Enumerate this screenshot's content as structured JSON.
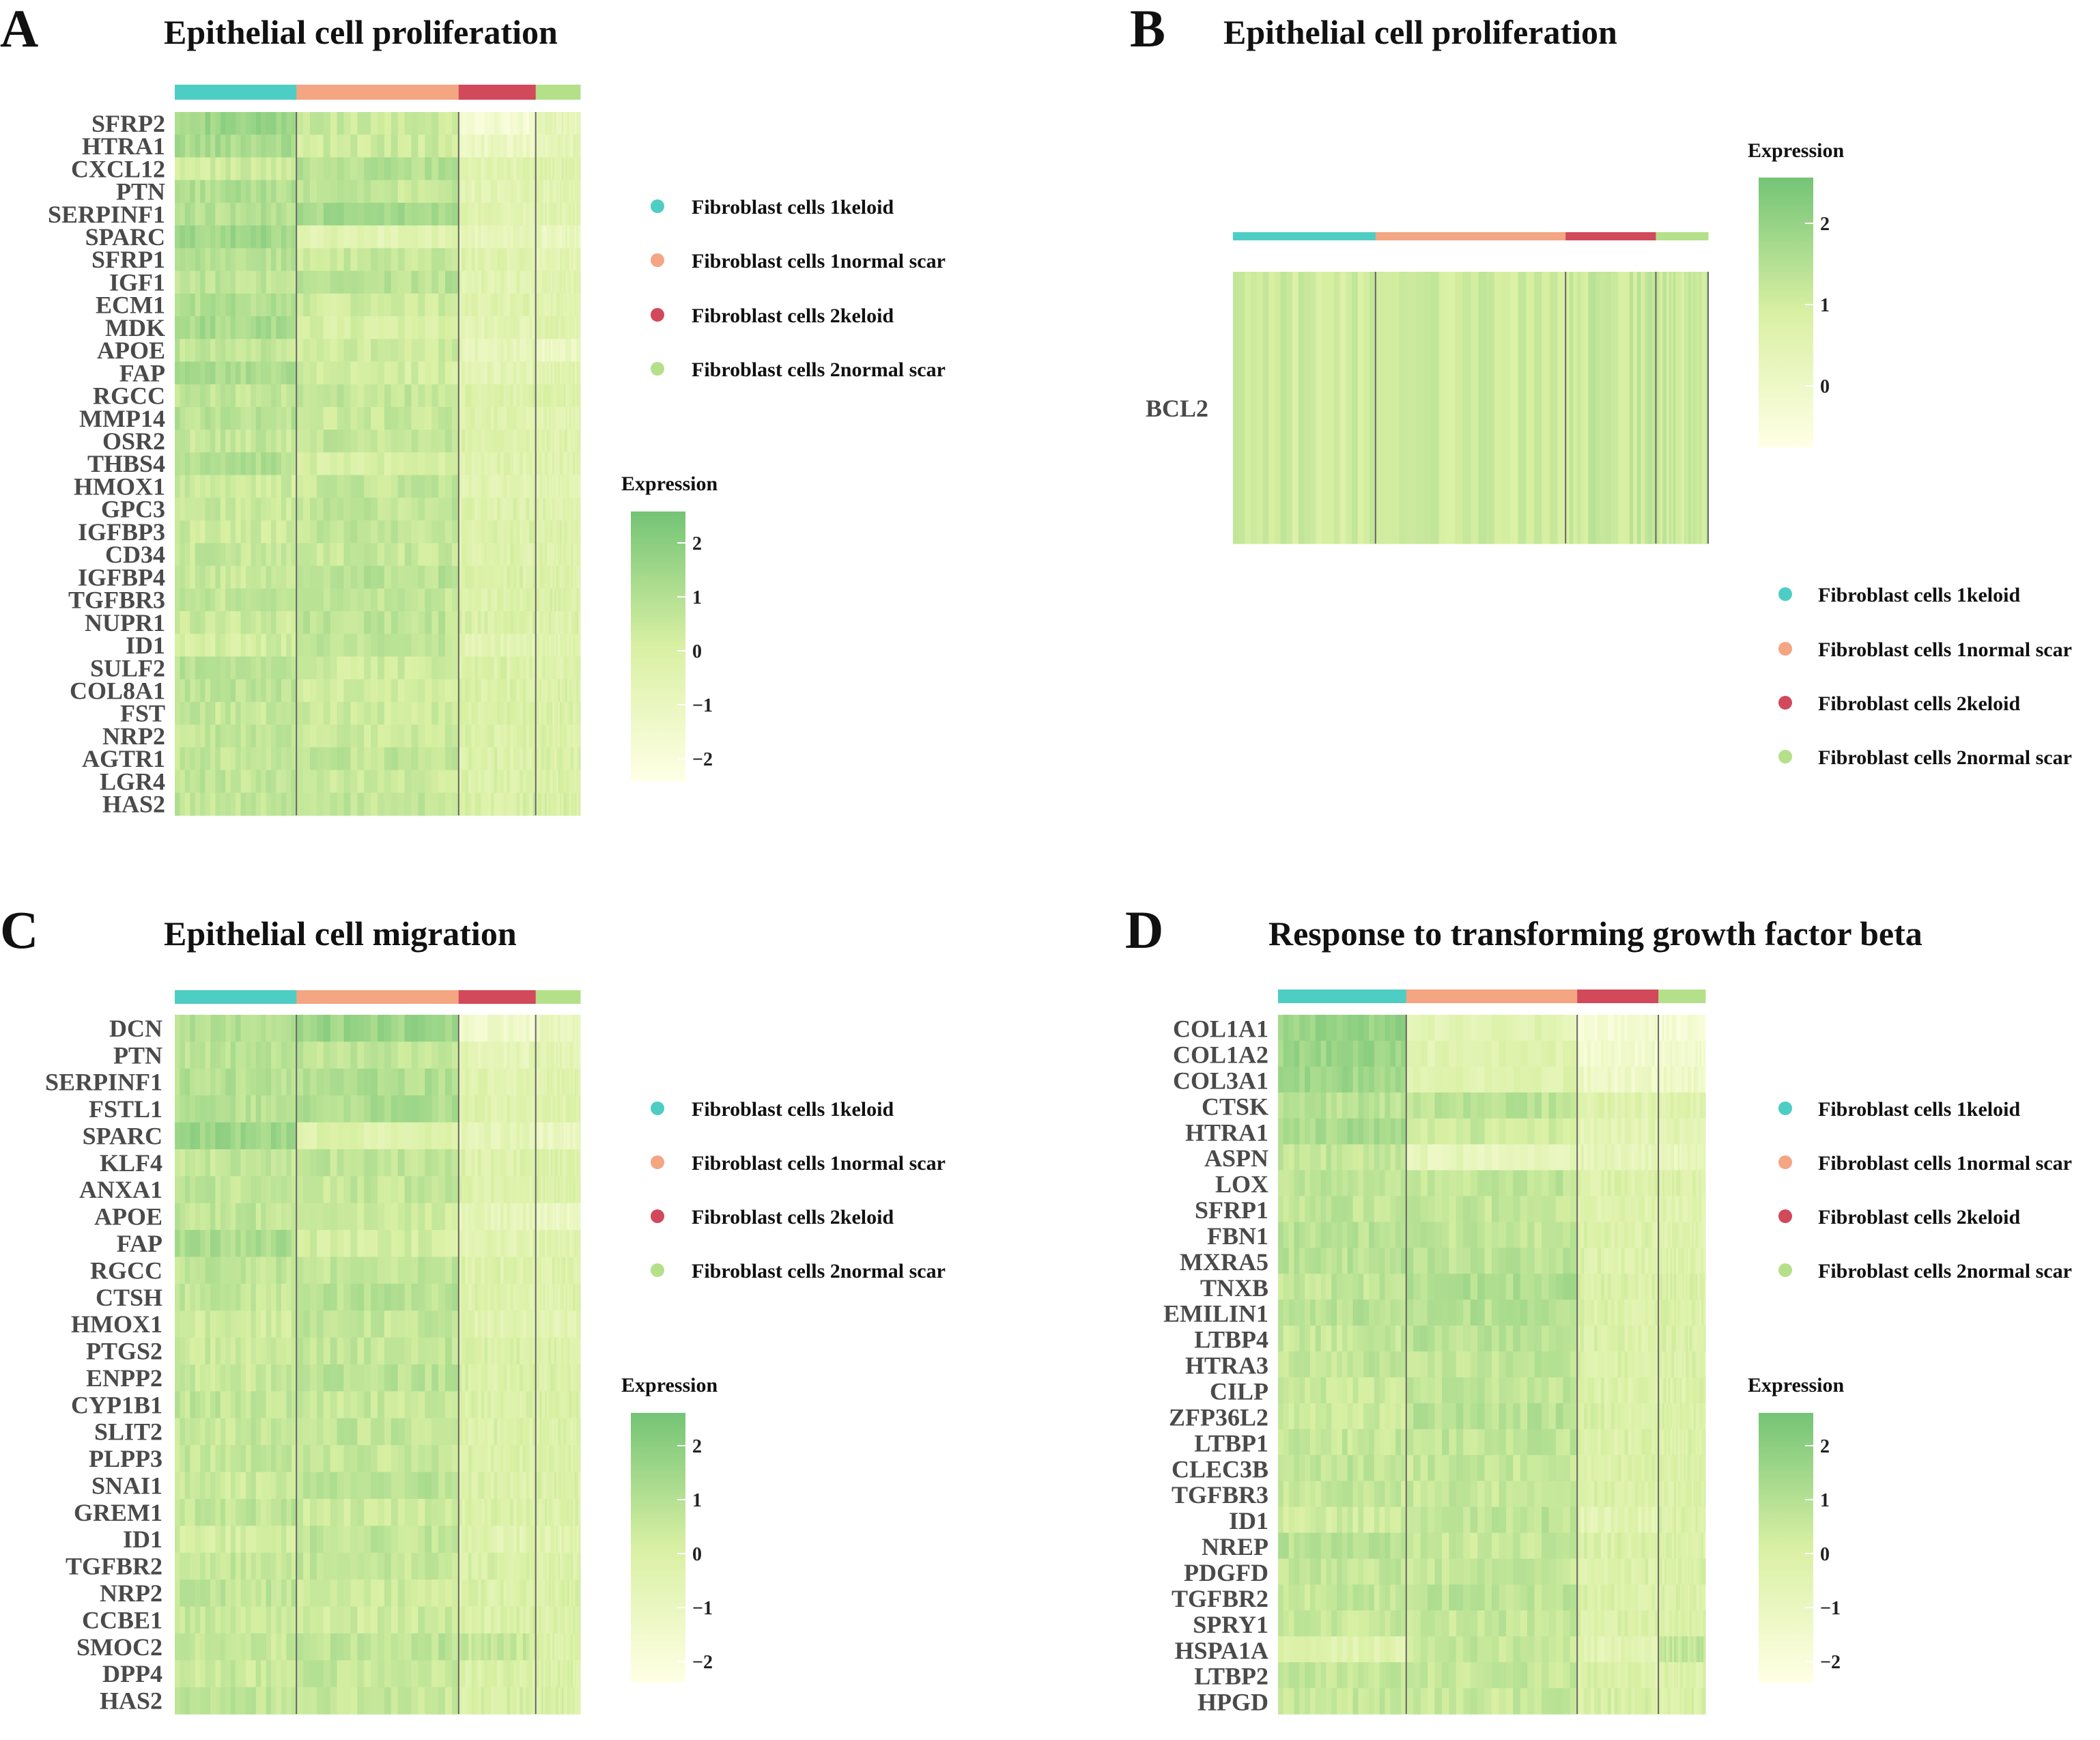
{
  "colors": {
    "groups": [
      "#4ecdc4",
      "#f4a582",
      "#d1495b",
      "#b5e08a"
    ],
    "scale_low": "#ffffe5",
    "scale_mid": "#d9f0a3",
    "scale_high": "#74c476"
  },
  "legend": {
    "groups": [
      "Fibroblast cells 1keloid",
      "Fibroblast cells 1normal scar",
      "Fibroblast cells 2keloid",
      "Fibroblast cells 2normal scar"
    ]
  },
  "chart_data": [
    {
      "type": "heatmap",
      "panel_label": "A",
      "title": "Epithelial cell proliferation",
      "group_fractions": [
        0.3,
        0.4,
        0.19,
        0.11
      ],
      "genes": [
        "SFRP2",
        "HTRA1",
        "CXCL12",
        "PTN",
        "SERPINF1",
        "SPARC",
        "SFRP1",
        "IGF1",
        "ECM1",
        "MDK",
        "APOE",
        "FAP",
        "RGCC",
        "MMP14",
        "OSR2",
        "THBS4",
        "HMOX1",
        "GPC3",
        "IGFBP3",
        "CD34",
        "IGFBP4",
        "TGFBR3",
        "NUPR1",
        "ID1",
        "SULF2",
        "COL8A1",
        "FST",
        "NRP2",
        "AGTR1",
        "LGR4",
        "HAS2"
      ],
      "group_means": [
        [
          1.5,
          0.4,
          -1.8,
          -0.8
        ],
        [
          1.2,
          0.3,
          -1.2,
          -0.8
        ],
        [
          0.2,
          0.9,
          -0.5,
          -0.3
        ],
        [
          1.0,
          0.5,
          -0.6,
          -0.6
        ],
        [
          0.9,
          1.3,
          -0.5,
          -0.5
        ],
        [
          1.4,
          -0.5,
          -0.9,
          -1.0
        ],
        [
          0.8,
          0.4,
          -0.4,
          -0.6
        ],
        [
          0.7,
          0.8,
          -0.5,
          -0.5
        ],
        [
          1.0,
          0.2,
          -0.4,
          -0.5
        ],
        [
          1.2,
          -0.1,
          -0.6,
          -0.4
        ],
        [
          0.6,
          0.2,
          -0.8,
          -1.2
        ],
        [
          1.1,
          0.1,
          -0.6,
          -0.5
        ],
        [
          0.6,
          0.5,
          -0.3,
          -0.3
        ],
        [
          0.8,
          0.4,
          -0.4,
          -0.5
        ],
        [
          0.5,
          0.6,
          -0.3,
          -0.4
        ],
        [
          0.9,
          0.0,
          -0.4,
          -0.4
        ],
        [
          0.3,
          0.5,
          -0.5,
          -0.6
        ],
        [
          0.4,
          0.6,
          -0.3,
          -0.3
        ],
        [
          0.3,
          0.6,
          -0.2,
          -0.3
        ],
        [
          0.5,
          0.5,
          -0.3,
          -0.3
        ],
        [
          0.4,
          0.8,
          -0.2,
          -0.3
        ],
        [
          0.6,
          0.5,
          -0.2,
          -0.2
        ],
        [
          0.4,
          0.7,
          -0.2,
          -0.3
        ],
        [
          0.1,
          0.6,
          -0.6,
          -0.5
        ],
        [
          0.8,
          0.2,
          -0.2,
          -0.3
        ],
        [
          0.7,
          0.2,
          -0.2,
          -0.2
        ],
        [
          0.5,
          0.3,
          -0.2,
          -0.2
        ],
        [
          0.6,
          0.3,
          -0.2,
          -0.2
        ],
        [
          0.5,
          0.6,
          -0.2,
          -0.2
        ],
        [
          0.6,
          0.3,
          -0.2,
          -0.2
        ],
        [
          0.6,
          0.5,
          -0.1,
          -0.1
        ]
      ],
      "colorbar": {
        "title": "Expression",
        "ticks": [
          "2",
          "1",
          "0",
          "−1",
          "−2"
        ]
      }
    },
    {
      "type": "heatmap",
      "panel_label": "B",
      "title": "Epithelial cell proliferation",
      "group_fractions": [
        0.3,
        0.4,
        0.19,
        0.11
      ],
      "genes": [
        "BCL2"
      ],
      "group_means": [
        [
          0.2,
          0.3,
          0.4,
          0.3
        ]
      ],
      "colorbar": {
        "title": "Expression",
        "ticks": [
          "2",
          "1",
          "0"
        ]
      }
    },
    {
      "type": "heatmap",
      "panel_label": "C",
      "title": "Epithelial cell migration",
      "group_fractions": [
        0.3,
        0.4,
        0.19,
        0.11
      ],
      "genes": [
        "DCN",
        "PTN",
        "SERPINF1",
        "FSTL1",
        "SPARC",
        "KLF4",
        "ANXA1",
        "APOE",
        "FAP",
        "RGCC",
        "CTSH",
        "HMOX1",
        "PTGS2",
        "ENPP2",
        "CYP1B1",
        "SLIT2",
        "PLPP3",
        "SNAI1",
        "GREM1",
        "ID1",
        "TGFBR2",
        "NRP2",
        "CCBE1",
        "SMOC2",
        "DPP4",
        "HAS2"
      ],
      "group_means": [
        [
          1.0,
          1.5,
          -1.5,
          -1.0
        ],
        [
          0.8,
          0.6,
          -0.7,
          -0.6
        ],
        [
          0.9,
          1.0,
          -0.5,
          -0.5
        ],
        [
          0.8,
          1.1,
          -0.4,
          -0.4
        ],
        [
          1.5,
          -0.4,
          -0.8,
          -1.2
        ],
        [
          0.5,
          0.6,
          -0.3,
          -0.3
        ],
        [
          0.6,
          0.5,
          -0.3,
          -0.3
        ],
        [
          0.6,
          0.2,
          -0.8,
          -1.2
        ],
        [
          1.1,
          0.1,
          -0.6,
          -0.5
        ],
        [
          0.6,
          0.6,
          -0.3,
          -0.3
        ],
        [
          0.5,
          0.8,
          -0.3,
          -0.3
        ],
        [
          0.2,
          0.5,
          -0.5,
          -0.6
        ],
        [
          0.4,
          0.6,
          -0.2,
          -0.2
        ],
        [
          0.4,
          0.7,
          -0.2,
          -0.2
        ],
        [
          0.6,
          0.5,
          -0.2,
          -0.2
        ],
        [
          0.5,
          0.6,
          -0.2,
          -0.2
        ],
        [
          0.5,
          0.5,
          -0.2,
          -0.2
        ],
        [
          0.3,
          0.8,
          -0.2,
          -0.2
        ],
        [
          0.6,
          0.3,
          -0.2,
          -0.2
        ],
        [
          0.1,
          0.6,
          -0.5,
          -0.5
        ],
        [
          0.6,
          0.5,
          -0.1,
          -0.2
        ],
        [
          0.6,
          0.3,
          -0.2,
          -0.2
        ],
        [
          0.4,
          0.3,
          -0.2,
          -0.2
        ],
        [
          0.4,
          0.7,
          0.4,
          -0.2
        ],
        [
          0.4,
          0.5,
          -0.2,
          -0.2
        ],
        [
          0.6,
          0.5,
          -0.1,
          -0.1
        ]
      ],
      "colorbar": {
        "title": "Expression",
        "ticks": [
          "2",
          "1",
          "0",
          "−1",
          "−2"
        ]
      }
    },
    {
      "type": "heatmap",
      "panel_label": "D",
      "title": "Response to transforming growth factor beta",
      "group_fractions": [
        0.3,
        0.4,
        0.19,
        0.11
      ],
      "genes": [
        "COL1A1",
        "COL1A2",
        "COL3A1",
        "CTSK",
        "HTRA1",
        "ASPN",
        "LOX",
        "SFRP1",
        "FBN1",
        "MXRA5",
        "TNXB",
        "EMILIN1",
        "LTBP4",
        "HTRA3",
        "CILP",
        "ZFP36L2",
        "LTBP1",
        "CLEC3B",
        "TGFBR3",
        "ID1",
        "NREP",
        "PDGFD",
        "TGFBR2",
        "SPRY1",
        "HSPA1A",
        "LTBP2",
        "HPGD"
      ],
      "group_means": [
        [
          1.6,
          -0.6,
          -1.8,
          -1.8
        ],
        [
          1.5,
          -0.5,
          -1.6,
          -1.6
        ],
        [
          1.4,
          -0.4,
          -1.4,
          -1.4
        ],
        [
          0.8,
          0.7,
          -0.4,
          -0.4
        ],
        [
          1.2,
          0.3,
          -0.6,
          -0.6
        ],
        [
          0.5,
          -0.9,
          -0.8,
          -1.0
        ],
        [
          0.6,
          0.6,
          -0.3,
          -0.3
        ],
        [
          0.6,
          0.5,
          -0.4,
          -0.5
        ],
        [
          0.8,
          0.6,
          -0.3,
          -0.3
        ],
        [
          0.8,
          0.7,
          -0.3,
          -0.3
        ],
        [
          0.6,
          1.0,
          -0.2,
          -0.2
        ],
        [
          0.8,
          0.9,
          -0.2,
          -0.2
        ],
        [
          0.5,
          0.8,
          -0.2,
          -0.2
        ],
        [
          0.6,
          0.6,
          -0.2,
          -0.2
        ],
        [
          0.4,
          0.6,
          -0.2,
          -0.2
        ],
        [
          0.3,
          0.8,
          -0.1,
          -0.1
        ],
        [
          0.5,
          0.6,
          -0.2,
          -0.2
        ],
        [
          0.6,
          0.5,
          -0.2,
          -0.2
        ],
        [
          0.5,
          0.5,
          -0.2,
          -0.2
        ],
        [
          0.2,
          0.7,
          -0.6,
          -0.2
        ],
        [
          0.8,
          0.4,
          -0.2,
          -0.2
        ],
        [
          0.6,
          0.5,
          -0.2,
          -0.2
        ],
        [
          0.5,
          0.7,
          -0.2,
          -0.2
        ],
        [
          0.4,
          0.5,
          -0.2,
          -0.2
        ],
        [
          -0.4,
          0.5,
          -0.6,
          0.6
        ],
        [
          0.6,
          0.5,
          -0.2,
          -0.2
        ],
        [
          0.5,
          0.4,
          -0.1,
          -0.1
        ]
      ],
      "colorbar": {
        "title": "Expression",
        "ticks": [
          "2",
          "1",
          "0",
          "−1",
          "−2"
        ]
      }
    }
  ]
}
